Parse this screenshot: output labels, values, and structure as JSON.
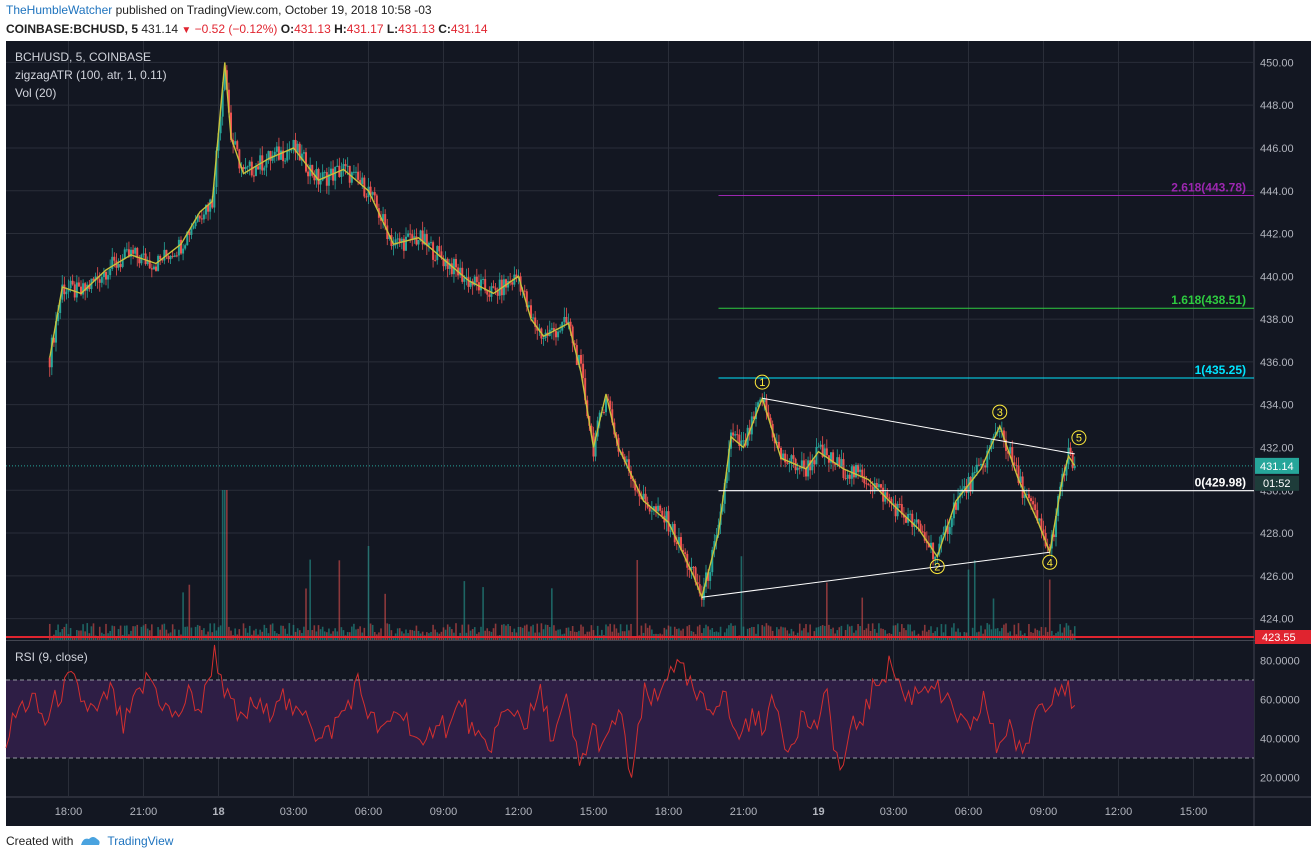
{
  "header": {
    "author": "TheHumbleWatcher",
    "published_text": "published on TradingView.com, October 19, 2018 10:58 -03",
    "symbol": "COINBASE:BCHUSD, 5",
    "last": "431.14",
    "change": "−0.52 (−0.12%)",
    "o_label": "O:",
    "o_val": "431.13",
    "h_label": "H:",
    "h_val": "431.17",
    "l_label": "L:",
    "l_val": "431.13",
    "c_label": "C:",
    "c_val": "431.14"
  },
  "pane_labels": {
    "symbol": "BCH/USD, 5, COINBASE",
    "indicator": "zigzagATR (100, atr, 1, 0.11)",
    "volume": "Vol (20)",
    "rsi": "RSI (9, close)"
  },
  "price_badges": {
    "last": "431.14",
    "countdown": "01:52",
    "low": "423.55"
  },
  "footer": {
    "created_with": "Created with",
    "brand": "TradingView"
  },
  "colors": {
    "background": "#131722",
    "grid": "#2a2e39",
    "up": "#26a69a",
    "down": "#ef5350",
    "zigzag": "#c8c23c",
    "fib_0": "#ffffff",
    "fib_1": "#00e5ff",
    "fib_1618": "#2ecc40",
    "fib_2618": "#9c27b0",
    "rsi_line": "#d32f2f",
    "rsi_band": "#2e1e45",
    "wave_label": "#ffeb3b"
  },
  "chart_data": [
    {
      "type": "candlestick",
      "title": "BCH/USD, 5, COINBASE",
      "x_ticks": [
        "18:00",
        "21:00",
        "18",
        "03:00",
        "06:00",
        "09:00",
        "12:00",
        "15:00",
        "18:00",
        "21:00",
        "19",
        "03:00",
        "06:00",
        "09:00",
        "12:00",
        "15:00"
      ],
      "y_ticks": [
        424,
        426,
        428,
        430,
        432,
        434,
        436,
        438,
        440,
        442,
        444,
        446,
        448,
        450
      ],
      "ylim": [
        423,
        451
      ],
      "price_path": [
        {
          "x": "17:15",
          "y": 436.2
        },
        {
          "x": "17:45",
          "y": 439.5
        },
        {
          "x": "18:30",
          "y": 439.2
        },
        {
          "x": "19:30",
          "y": 440.3
        },
        {
          "x": "20:30",
          "y": 441.0
        },
        {
          "x": "21:30",
          "y": 440.6
        },
        {
          "x": "22:30",
          "y": 441.5
        },
        {
          "x": "23:15",
          "y": 443.0
        },
        {
          "x": "23:45",
          "y": 443.5
        },
        {
          "x": "18 00:15",
          "y": 450.0
        },
        {
          "x": "00:30",
          "y": 446.5
        },
        {
          "x": "01:00",
          "y": 444.8
        },
        {
          "x": "02:00",
          "y": 445.5
        },
        {
          "x": "03:00",
          "y": 446.0
        },
        {
          "x": "04:00",
          "y": 444.5
        },
        {
          "x": "05:00",
          "y": 445.0
        },
        {
          "x": "06:00",
          "y": 444.0
        },
        {
          "x": "07:00",
          "y": 441.5
        },
        {
          "x": "08:00",
          "y": 441.8
        },
        {
          "x": "09:00",
          "y": 440.8
        },
        {
          "x": "10:00",
          "y": 439.8
        },
        {
          "x": "11:00",
          "y": 439.2
        },
        {
          "x": "12:00",
          "y": 440.0
        },
        {
          "x": "12:30",
          "y": 438.0
        },
        {
          "x": "13:00",
          "y": 437.2
        },
        {
          "x": "14:00",
          "y": 437.8
        },
        {
          "x": "14:30",
          "y": 435.5
        },
        {
          "x": "15:00",
          "y": 432.0
        },
        {
          "x": "15:30",
          "y": 434.5
        },
        {
          "x": "16:00",
          "y": 432.0
        },
        {
          "x": "17:00",
          "y": 429.5
        },
        {
          "x": "18:00",
          "y": 428.5
        },
        {
          "x": "19:00",
          "y": 426.0
        },
        {
          "x": "19:20",
          "y": 425.0
        },
        {
          "x": "20:00",
          "y": 428.0
        },
        {
          "x": "20:30",
          "y": 432.5
        },
        {
          "x": "21:00",
          "y": 432.0
        },
        {
          "x": "21:45",
          "y": 434.3
        },
        {
          "x": "22:30",
          "y": 431.5
        },
        {
          "x": "23:30",
          "y": 431.0
        },
        {
          "x": "19 00:00",
          "y": 431.8
        },
        {
          "x": "01:00",
          "y": 431.0
        },
        {
          "x": "02:00",
          "y": 430.5
        },
        {
          "x": "03:00",
          "y": 429.3
        },
        {
          "x": "04:00",
          "y": 428.2
        },
        {
          "x": "04:45",
          "y": 426.9
        },
        {
          "x": "05:30",
          "y": 429.5
        },
        {
          "x": "06:30",
          "y": 431.0
        },
        {
          "x": "07:15",
          "y": 433.0
        },
        {
          "x": "08:00",
          "y": 430.5
        },
        {
          "x": "08:45",
          "y": 428.6
        },
        {
          "x": "09:15",
          "y": 427.1
        },
        {
          "x": "09:45",
          "y": 430.5
        },
        {
          "x": "10:00",
          "y": 431.6
        },
        {
          "x": "10:15",
          "y": 431.14
        }
      ],
      "elliott_wave": [
        {
          "label": "1",
          "y": 434.4
        },
        {
          "label": "2",
          "y": 426.9
        },
        {
          "label": "3",
          "y": 433.0
        },
        {
          "label": "4",
          "y": 427.1
        },
        {
          "label": "5",
          "y": 431.8
        }
      ],
      "fibonacci_levels": [
        {
          "label": "0(429.98)",
          "value": 429.98
        },
        {
          "label": "1(435.25)",
          "value": 435.25
        },
        {
          "label": "1.618(438.51)",
          "value": 438.51
        },
        {
          "label": "2.618(443.78)",
          "value": 443.78
        }
      ],
      "trendlines": [
        {
          "from": {
            "x": "18 21:45",
            "y": 434.3
          },
          "to": {
            "x": "19 10:15",
            "y": 431.7
          }
        },
        {
          "from": {
            "x": "18 19:20",
            "y": 425.0
          },
          "to": {
            "x": "19 09:15",
            "y": 427.1
          }
        }
      ]
    },
    {
      "type": "line",
      "title": "RSI (9, close)",
      "y_ticks": [
        20,
        40,
        60,
        80
      ],
      "ylim": [
        10,
        90
      ],
      "bands": [
        30,
        70
      ],
      "series": [
        {
          "name": "RSI (9, close)",
          "values": [
            40,
            55,
            60,
            48,
            62,
            70,
            58,
            52,
            65,
            45,
            60,
            72,
            58,
            50,
            62,
            55,
            85,
            60,
            48,
            58,
            52,
            65,
            50,
            58,
            38,
            45,
            55,
            68,
            50,
            42,
            55,
            48,
            30,
            52,
            45,
            60,
            38,
            35,
            50,
            55,
            48,
            62,
            40,
            58,
            25,
            45,
            35,
            55,
            20,
            62,
            58,
            80,
            72,
            60,
            55,
            65,
            40,
            50,
            48,
            58,
            35,
            52,
            45,
            60,
            22,
            45,
            55,
            72,
            78,
            60,
            65,
            70,
            58,
            52,
            40,
            62,
            35,
            48,
            28,
            55,
            62,
            70,
            57
          ]
        }
      ]
    }
  ]
}
